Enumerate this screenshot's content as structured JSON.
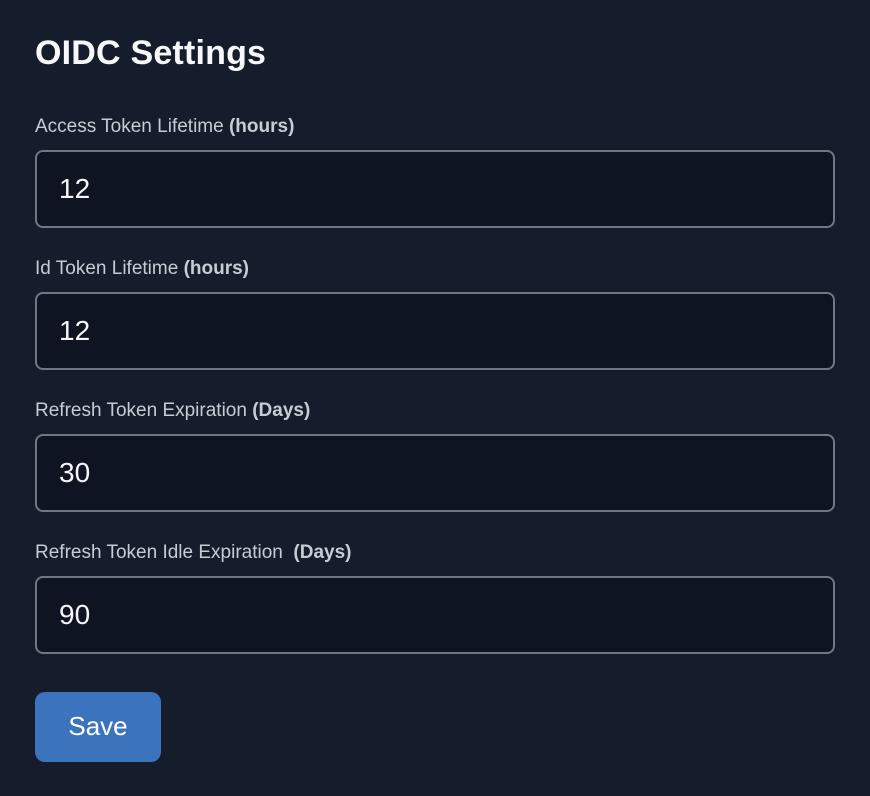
{
  "page": {
    "title": "OIDC Settings"
  },
  "form": {
    "fields": [
      {
        "label": "Access Token Lifetime",
        "unit": "(hours)",
        "value": "12"
      },
      {
        "label": "Id Token Lifetime",
        "unit": "(hours)",
        "value": "12"
      },
      {
        "label": "Refresh Token Expiration",
        "unit": "(Days)",
        "value": "30"
      },
      {
        "label": "Refresh Token Idle Expiration ",
        "unit": "(Days)",
        "value": "90"
      }
    ],
    "save_label": "Save"
  },
  "colors": {
    "page_background": "#151c2c",
    "input_background": "#0e1421",
    "input_border": "#6f7785",
    "label_text": "#c7ccd4",
    "title_text": "#f7f8fa",
    "accent_button": "#3b73bd",
    "button_text": "#ffffff"
  }
}
